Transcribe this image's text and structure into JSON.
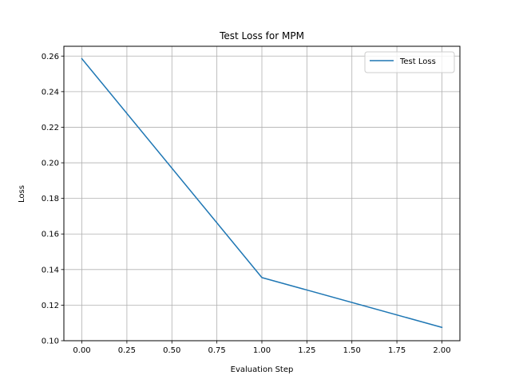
{
  "chart_data": {
    "type": "line",
    "title": "Test Loss for MPM",
    "xlabel": "Evaluation Step",
    "ylabel": "Loss",
    "xlim": [
      -0.1,
      2.1
    ],
    "ylim": [
      0.1,
      0.2655
    ],
    "xticks": [
      "0.00",
      "0.25",
      "0.50",
      "0.75",
      "1.00",
      "1.25",
      "1.50",
      "1.75",
      "2.00"
    ],
    "yticks": [
      "0.10",
      "0.12",
      "0.14",
      "0.16",
      "0.18",
      "0.20",
      "0.22",
      "0.24",
      "0.26"
    ],
    "grid": true,
    "legend_position": "top-right",
    "series": [
      {
        "name": "Test Loss",
        "color": "#1f77b4",
        "x": [
          0,
          1,
          2
        ],
        "y": [
          0.2585,
          0.1355,
          0.1075
        ]
      }
    ]
  }
}
